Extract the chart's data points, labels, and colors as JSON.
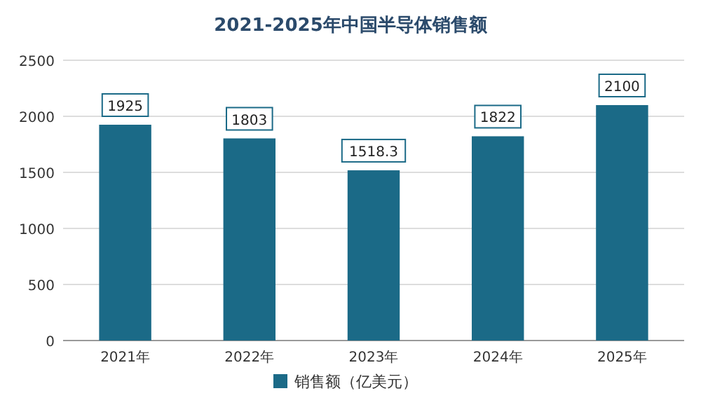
{
  "chart_data": {
    "type": "bar",
    "title": "2021-2025年中国半导体销售额",
    "categories": [
      "2021年",
      "2022年",
      "2023年",
      "2024年",
      "2025年"
    ],
    "series": [
      {
        "name": "销售额（亿美元）",
        "color": "#1b6a87",
        "values": [
          1925,
          1803,
          1518.3,
          1822,
          2100
        ]
      }
    ],
    "ylim": [
      0,
      2500
    ],
    "yticks": [
      0,
      500,
      1000,
      1500,
      2000,
      2500
    ],
    "grid": "y",
    "legend": "bottom",
    "data_labels": true
  }
}
